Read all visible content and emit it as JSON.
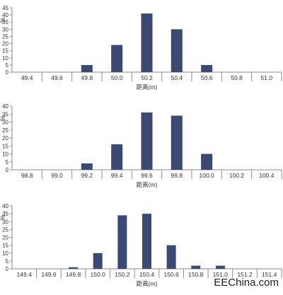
{
  "chart_data": [
    {
      "type": "bar",
      "ylabel": "%",
      "xlabel": "距离(m)",
      "ylim": [
        0,
        45
      ],
      "yticks": [
        0,
        5,
        10,
        15,
        20,
        25,
        30,
        35,
        40,
        45
      ],
      "categories": [
        "49.4",
        "49.6",
        "49.8",
        "50.0",
        "50.2",
        "50.4",
        "50.6",
        "50.8",
        "51.0"
      ],
      "values": [
        0,
        0,
        5,
        19,
        41,
        30,
        5,
        0,
        0
      ],
      "grid": false,
      "bar_color": "#3b4a74"
    },
    {
      "type": "bar",
      "ylabel": "%",
      "xlabel": "距离(m)",
      "ylim": [
        0,
        40
      ],
      "yticks": [
        0,
        5,
        10,
        15,
        20,
        25,
        30,
        35,
        40
      ],
      "categories": [
        "98.8",
        "99.0",
        "99.2",
        "99.4",
        "99.6",
        "99.8",
        "100.0",
        "100.2",
        "100.4"
      ],
      "values": [
        0,
        0,
        4,
        16,
        36,
        34,
        10,
        0,
        0
      ],
      "grid": false,
      "bar_color": "#3b4a74"
    },
    {
      "type": "bar",
      "ylabel": "%",
      "xlabel": "距离(m)",
      "ylim": [
        0,
        40
      ],
      "yticks": [
        0,
        5,
        10,
        15,
        20,
        25,
        30,
        35,
        40
      ],
      "categories": [
        "149.4",
        "149.6",
        "149.8",
        "150.0",
        "150.2",
        "150.4",
        "150.6",
        "150.8",
        "151.0",
        "151.2",
        "151.4"
      ],
      "values": [
        0,
        0,
        1,
        10,
        34,
        35,
        15,
        2,
        2,
        0,
        0
      ],
      "grid": false,
      "bar_color": "#3b4a74"
    }
  ],
  "watermark": "EEChina.com"
}
